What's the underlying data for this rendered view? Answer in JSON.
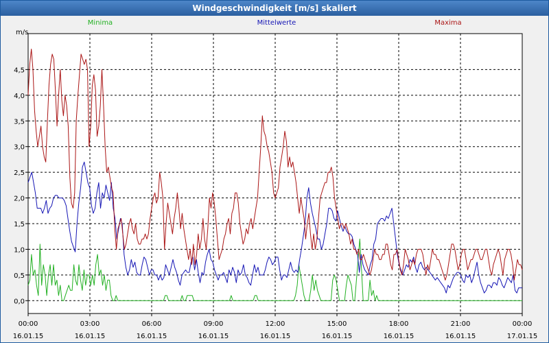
{
  "window": {
    "title": "Windgeschwindigkeit [m/s] skaliert"
  },
  "chart_data": {
    "type": "line",
    "title": "Windgeschwindigkeit [m/s] skaliert",
    "ylabel": "m/s",
    "ylim": [
      -0.25,
      5.2
    ],
    "xlim": [
      0,
      24
    ],
    "yticks": [
      {
        "value": 0,
        "label": "0,0"
      },
      {
        "value": 0.5,
        "label": "0,5"
      },
      {
        "value": 1,
        "label": "1,0"
      },
      {
        "value": 1.5,
        "label": "1,5"
      },
      {
        "value": 2,
        "label": "2,0"
      },
      {
        "value": 2.5,
        "label": "2,5"
      },
      {
        "value": 3,
        "label": "3,0"
      },
      {
        "value": 3.5,
        "label": "3,5"
      },
      {
        "value": 4,
        "label": "4,0"
      },
      {
        "value": 4.5,
        "label": "4,5"
      }
    ],
    "xticks": [
      {
        "value": 0,
        "time": "00:00",
        "date": "16.01.15"
      },
      {
        "value": 3,
        "time": "03:00",
        "date": "16.01.15"
      },
      {
        "value": 6,
        "time": "06:00",
        "date": "16.01.15"
      },
      {
        "value": 9,
        "time": "09:00",
        "date": "16.01.15"
      },
      {
        "value": 12,
        "time": "12:00",
        "date": "16.01.15"
      },
      {
        "value": 15,
        "time": "15:00",
        "date": "16.01.15"
      },
      {
        "value": 18,
        "time": "18:00",
        "date": "16.01.15"
      },
      {
        "value": 21,
        "time": "21:00",
        "date": "16.01.15"
      },
      {
        "value": 24,
        "time": "00:00",
        "date": "17.01.15"
      }
    ],
    "grid": true,
    "series": [
      {
        "name": "Minima",
        "color": "#22b022",
        "legend_position": "top-left",
        "values": [
          0.3,
          0.4,
          0.9,
          0.5,
          0.6,
          0.3,
          0.1,
          1.1,
          0.3,
          0.7,
          0.5,
          0.1,
          0.5,
          0.7,
          0.3,
          0.7,
          0.3,
          0.4,
          0.1,
          0.3,
          0,
          0,
          0.1,
          0.2,
          0.3,
          0.2,
          0.2,
          0.7,
          0.4,
          0.3,
          0.7,
          0.4,
          0.2,
          0.6,
          0.3,
          0.5,
          0.5,
          0.3,
          0.5,
          0.3,
          0.7,
          0.9,
          0.5,
          0.6,
          0.3,
          0.5,
          0.2,
          0.4,
          0.4,
          0.1,
          0,
          0,
          0.1,
          0,
          0,
          0,
          0,
          0,
          0,
          0,
          0,
          0,
          0,
          0,
          0,
          0,
          0,
          0,
          0,
          0,
          0,
          0,
          0,
          0,
          0,
          0,
          0,
          0,
          0,
          0,
          0,
          0.1,
          0.1,
          0,
          0,
          0,
          0,
          0,
          0,
          0,
          0,
          0.1,
          0,
          0,
          0.1,
          0.1,
          0.1,
          0.1,
          0,
          0,
          0,
          0,
          0,
          0,
          0,
          0,
          0,
          0,
          0,
          0,
          0,
          0,
          0,
          0,
          0,
          0,
          0,
          0,
          0,
          0,
          0.1,
          0,
          0,
          0,
          0,
          0,
          0,
          0,
          0,
          0,
          0,
          0,
          0,
          0,
          0.1,
          0.1,
          0,
          0,
          0,
          0,
          0,
          0,
          0,
          0,
          0,
          0,
          0,
          0,
          0,
          0,
          0,
          0,
          0,
          0,
          0,
          0,
          0,
          0,
          0.1,
          0.3,
          0.7,
          0.5,
          0.3,
          0.1,
          0,
          0,
          0,
          0.2,
          0.5,
          0.2,
          0.4,
          0.2,
          0.1,
          0,
          0,
          0,
          0,
          0,
          0,
          0,
          0.4,
          0.5,
          0.4,
          0.2,
          0,
          0,
          0,
          0,
          0.3,
          0.5,
          0.4,
          0.3,
          0,
          0,
          0.4,
          0.8,
          1.2,
          0.6,
          0,
          0,
          0,
          0,
          0.4,
          0.1,
          0.2,
          0,
          0.1,
          0,
          0,
          0,
          0,
          0,
          0,
          0,
          0,
          0,
          0,
          0,
          0,
          0,
          0,
          0,
          0,
          0,
          0,
          0,
          0,
          0,
          0,
          0,
          0,
          0,
          0,
          0,
          0,
          0,
          0,
          0,
          0,
          0,
          0,
          0,
          0,
          0,
          0,
          0,
          0,
          0,
          0,
          0,
          0,
          0,
          0,
          0,
          0,
          0,
          0,
          0,
          0,
          0,
          0,
          0,
          0,
          0,
          0,
          0,
          0,
          0,
          0,
          0,
          0,
          0,
          0,
          0,
          0,
          0,
          0,
          0,
          0,
          0,
          0,
          0,
          0,
          0,
          0,
          0,
          0,
          0,
          0,
          0,
          0,
          0,
          0
        ]
      },
      {
        "name": "Mittelwerte",
        "color": "#1414b4",
        "legend_position": "top-center",
        "values": [
          2.3,
          2.4,
          2.5,
          2.3,
          2.1,
          1.8,
          1.8,
          1.8,
          1.7,
          1.8,
          1.95,
          1.7,
          1.8,
          1.85,
          2.0,
          2.05,
          2.05,
          2.0,
          2.0,
          2.0,
          1.95,
          1.85,
          1.6,
          1.35,
          1.15,
          1.05,
          0.95,
          1.5,
          1.9,
          2.2,
          2.6,
          2.7,
          2.5,
          2.3,
          2.2,
          1.85,
          1.7,
          1.8,
          2.1,
          2.3,
          1.8,
          2.1,
          2.0,
          2.25,
          2.1,
          1.95,
          2.3,
          1.8,
          1.6,
          1.2,
          1.4,
          1.6,
          1.5,
          0.9,
          0.65,
          0.5,
          0.6,
          0.8,
          0.65,
          0.75,
          0.55,
          0.5,
          0.5,
          0.7,
          0.85,
          0.8,
          0.65,
          0.5,
          0.6,
          0.6,
          0.5,
          0.5,
          0.4,
          0.5,
          0.4,
          0.45,
          0.7,
          0.6,
          0.5,
          0.65,
          0.8,
          0.65,
          0.55,
          0.4,
          0.3,
          0.5,
          0.55,
          0.6,
          0.55,
          0.55,
          0.75,
          0.85,
          0.6,
          0.8,
          0.55,
          0.35,
          0.55,
          0.5,
          0.75,
          0.9,
          1.0,
          0.8,
          0.75,
          0.6,
          0.5,
          0.4,
          0.5,
          0.5,
          0.55,
          0.45,
          0.35,
          0.6,
          0.5,
          0.65,
          0.55,
          0.35,
          0.6,
          0.5,
          0.55,
          0.7,
          0.5,
          0.45,
          0.35,
          0.3,
          0.5,
          0.7,
          0.55,
          0.65,
          0.5,
          0.5,
          0.5,
          0.6,
          0.75,
          0.85,
          0.8,
          0.7,
          0.75,
          0.85,
          0.85,
          0.6,
          0.4,
          0.5,
          0.5,
          0.45,
          0.6,
          0.75,
          0.6,
          0.55,
          0.6,
          0.55,
          0.8,
          1.0,
          1.25,
          1.5,
          2.0,
          2.2,
          1.9,
          1.7,
          1.55,
          1.4,
          1.2,
          1.2,
          1.0,
          1.1,
          1.3,
          1.5,
          1.8,
          1.8,
          1.75,
          1.6,
          1.55,
          1.75,
          1.6,
          1.45,
          1.35,
          1.45,
          1.35,
          1.3,
          1.3,
          1.25,
          1.1,
          1.0,
          0.9,
          0.55,
          0.9,
          0.7,
          0.6,
          0.55,
          0.5,
          0.7,
          0.8,
          1.1,
          1.2,
          1.5,
          1.55,
          1.6,
          1.6,
          1.55,
          1.65,
          1.6,
          1.7,
          1.8,
          1.5,
          1.2,
          0.9,
          0.7,
          0.6,
          0.5,
          0.6,
          0.7,
          0.65,
          0.8,
          0.75,
          0.85,
          0.65,
          0.55,
          0.7,
          0.75,
          0.65,
          0.6,
          0.65,
          0.6,
          0.55,
          0.5,
          0.45,
          0.4,
          0.45,
          0.4,
          0.35,
          0.3,
          0.25,
          0.15,
          0.3,
          0.25,
          0.35,
          0.45,
          0.5,
          0.55,
          0.55,
          0.5,
          0.4,
          0.35,
          0.5,
          0.45,
          0.5,
          0.35,
          0.45,
          0.6,
          0.75,
          0.5,
          0.35,
          0.25,
          0.15,
          0.2,
          0.3,
          0.3,
          0.25,
          0.35,
          0.35,
          0.3,
          0.45,
          0.4,
          0.3,
          0.25,
          0.35,
          0.45,
          0.4,
          0.35,
          0.5,
          0.2,
          0.15,
          0.25,
          0.25,
          0.25
        ]
      },
      {
        "name": "Maxima",
        "color": "#aa1414",
        "legend_position": "top-right",
        "values": [
          4.0,
          4.6,
          4.9,
          4.5,
          3.7,
          3.3,
          3.0,
          3.2,
          3.4,
          3.0,
          2.8,
          2.7,
          3.5,
          4.2,
          4.6,
          4.8,
          4.7,
          4.1,
          3.4,
          4.0,
          4.5,
          3.9,
          3.6,
          4.0,
          3.8,
          3.4,
          2.4,
          1.9,
          1.8,
          2.1,
          3.5,
          4.0,
          4.4,
          4.8,
          4.7,
          4.6,
          4.7,
          4.5,
          3.0,
          3.4,
          4.2,
          4.4,
          4.1,
          3.2,
          3.4,
          3.8,
          4.5,
          3.8,
          3.0,
          2.5,
          2.6,
          2.4,
          2.2,
          2.1,
          1.4,
          1.0,
          1.4,
          1.5,
          1.6,
          1.3,
          1.0,
          1.1,
          1.3,
          1.5,
          1.6,
          1.4,
          1.3,
          1.5,
          1.2,
          1.1,
          1.1,
          1.2,
          1.2,
          1.3,
          1.2,
          1.3,
          1.6,
          1.8,
          2.0,
          2.1,
          1.9,
          2.0,
          2.5,
          2.3,
          2.0,
          1.0,
          1.5,
          1.9,
          1.7,
          1.5,
          1.3,
          1.6,
          1.8,
          2.1,
          1.8,
          1.4,
          1.7,
          1.4,
          1.2,
          1.0,
          0.8,
          1.0,
          0.7,
          1.1,
          0.7,
          0.9,
          1.3,
          1.0,
          1.2,
          1.6,
          1.2,
          1.0,
          1.4,
          2.0,
          1.8,
          2.1,
          1.9,
          1.6,
          1.2,
          0.8,
          0.9,
          1.0,
          1.2,
          1.3,
          1.5,
          1.6,
          1.3,
          1.7,
          1.8,
          2.1,
          2.1,
          1.9,
          1.5,
          1.3,
          1.1,
          1.2,
          1.4,
          1.3,
          1.5,
          1.6,
          1.4,
          1.6,
          1.8,
          2.0,
          2.5,
          3.0,
          3.6,
          3.3,
          3.2,
          3.0,
          2.9,
          2.7,
          2.5,
          2.1,
          2.0,
          2.1,
          2.2,
          2.6,
          2.8,
          3.0,
          3.3,
          3.1,
          2.6,
          2.8,
          2.6,
          2.7,
          2.5,
          2.3,
          2.0,
          1.7,
          2.0,
          1.8,
          1.6,
          1.2,
          1.5,
          1.7,
          1.3,
          1.0,
          1.3,
          1.0,
          1.2,
          1.6,
          2.0,
          2.1,
          2.2,
          2.3,
          2.3,
          2.5,
          2.5,
          2.6,
          2.4,
          2.0,
          1.8,
          1.6,
          1.4,
          1.5,
          1.5,
          1.4,
          1.5,
          1.4,
          1.3,
          1.1,
          1.2,
          1.0,
          1.0,
          0.9,
          1.0,
          0.8,
          0.8,
          0.9,
          0.8,
          0.7,
          0.6,
          0.5,
          0.6,
          0.8,
          1.0,
          0.9,
          0.9,
          0.8,
          0.8,
          0.9,
          0.9,
          1.1,
          1.1,
          0.9,
          0.7,
          0.6,
          0.9,
          0.9,
          1.0,
          0.8,
          0.6,
          0.5,
          0.7,
          1.0,
          0.9,
          0.8,
          0.6,
          0.7,
          0.8,
          0.7,
          0.9,
          1.0,
          1.0,
          1.0,
          0.9,
          0.7,
          0.5,
          0.7,
          0.6,
          0.8,
          1.0,
          0.9,
          0.9,
          0.8,
          0.8,
          0.7,
          0.6,
          0.5,
          0.4,
          0.5,
          0.7,
          0.9,
          1.1,
          1.1,
          1.0,
          0.8,
          0.6,
          0.7,
          0.9,
          1.0,
          1.0,
          0.8,
          0.6,
          0.7,
          0.8,
          0.8,
          0.9,
          1.0,
          1.0,
          0.9,
          0.8,
          0.8,
          0.9,
          1.0,
          1.0,
          0.8,
          0.6,
          0.5,
          0.7,
          0.8,
          0.9,
          1.0,
          0.9,
          0.7,
          0.5,
          0.8,
          0.9,
          1.0,
          1.0,
          0.9,
          0.7,
          0.4,
          0.6,
          0.8,
          0.7,
          0.7,
          0.6
        ]
      }
    ]
  }
}
